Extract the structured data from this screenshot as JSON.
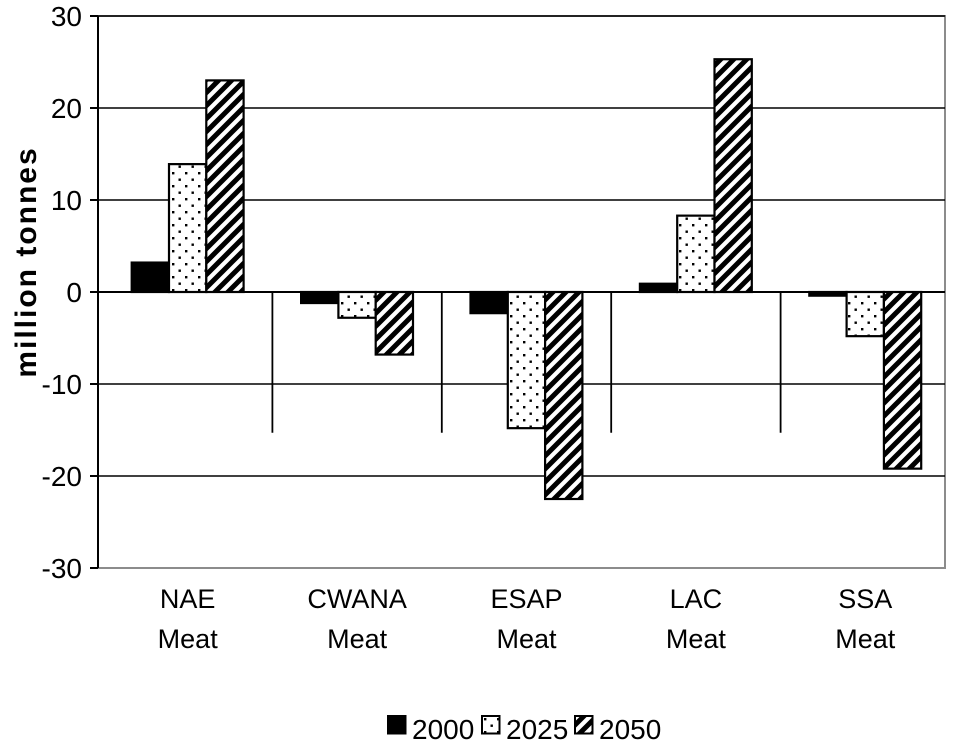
{
  "chart_data": {
    "type": "bar",
    "title": "",
    "ylabel": "million tonnes",
    "xlabel": "",
    "categories": [
      {
        "line1": "NAE",
        "line2": "Meat"
      },
      {
        "line1": "CWANA",
        "line2": "Meat"
      },
      {
        "line1": "ESAP",
        "line2": "Meat"
      },
      {
        "line1": "LAC",
        "line2": "Meat"
      },
      {
        "line1": "SSA",
        "line2": "Meat"
      }
    ],
    "series": [
      {
        "name": "2000",
        "pattern": "solid",
        "values": [
          3.2,
          -1.2,
          -2.3,
          0.9,
          -0.4
        ]
      },
      {
        "name": "2025",
        "pattern": "dots",
        "values": [
          13.9,
          -2.8,
          -14.8,
          8.3,
          -4.8
        ]
      },
      {
        "name": "2050",
        "pattern": "hatch",
        "values": [
          23.0,
          -6.8,
          -22.5,
          25.3,
          -19.2
        ]
      }
    ],
    "ylim": [
      -30,
      30
    ],
    "y_step": 10,
    "y_ticks": [
      30,
      20,
      10,
      0,
      -10,
      -20,
      -30
    ],
    "grid": true,
    "legend_position": "bottom",
    "colors": {
      "bar_fill": "#000000",
      "bar_outline": "#000000",
      "gridline": "#000000",
      "frame": "#8c8c8c",
      "background": "#ffffff"
    }
  }
}
